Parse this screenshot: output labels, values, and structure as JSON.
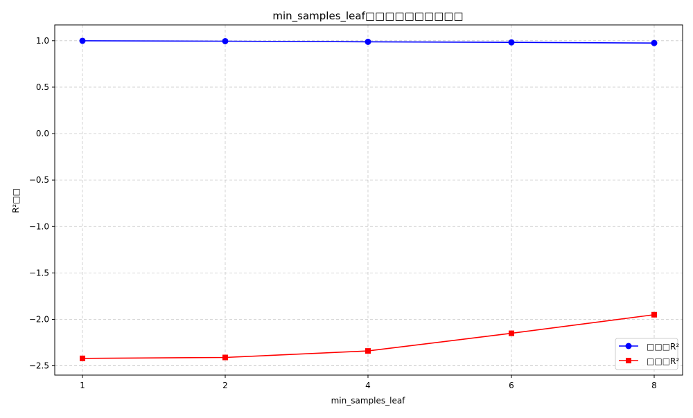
{
  "chart_data": {
    "type": "line",
    "title": "min_samples_leaf□□□□□□□□□□",
    "xlabel": "min_samples_leaf",
    "ylabel": "R²□□",
    "categories": [
      "1",
      "2",
      "4",
      "6",
      "8"
    ],
    "ylim": [
      -2.6,
      1.17
    ],
    "yticks": [
      1.0,
      0.5,
      0.0,
      -0.5,
      -1.0,
      -1.5,
      -2.0,
      -2.5
    ],
    "ytick_labels": [
      "1.0",
      "0.5",
      "0.0",
      "−0.5",
      "−1.0",
      "−1.5",
      "−2.0",
      "−2.5"
    ],
    "grid": true,
    "legend_position": "lower-right",
    "series": [
      {
        "name": "□□□R²",
        "values": [
          0.999,
          0.995,
          0.988,
          0.982,
          0.975
        ],
        "color": "#0000ff",
        "marker": "circle"
      },
      {
        "name": "□□□R²",
        "values": [
          -2.42,
          -2.41,
          -2.34,
          -2.15,
          -1.95
        ],
        "color": "#ff0000",
        "marker": "square"
      }
    ]
  }
}
